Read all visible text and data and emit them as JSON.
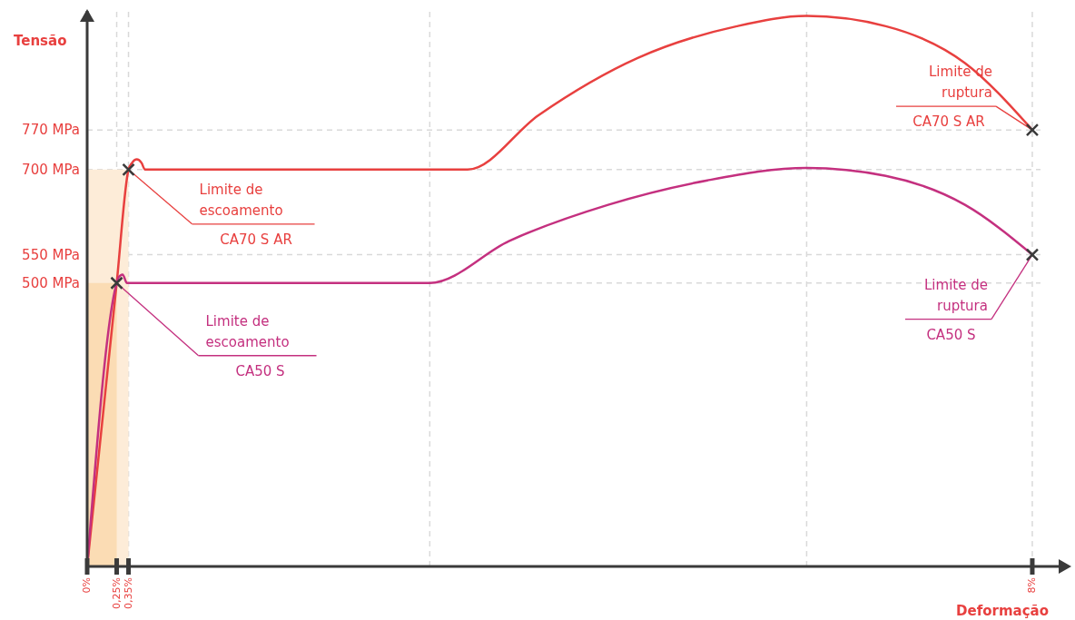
{
  "chart_data": {
    "type": "line",
    "xlabel": "Deformação",
    "ylabel": "Tensão",
    "xlim": [
      0,
      8.3
    ],
    "ylim": [
      0,
      980
    ],
    "xticks": [
      {
        "value": 0,
        "label": "0%"
      },
      {
        "value": 0.25,
        "label": "0,25%"
      },
      {
        "value": 0.35,
        "label": "0,35%"
      },
      {
        "value": 8,
        "label": "8%"
      }
    ],
    "yticks": [
      {
        "value": 500,
        "label": "500 MPa"
      },
      {
        "value": 550,
        "label": "550 MPa"
      },
      {
        "value": 700,
        "label": "700 MPa"
      },
      {
        "value": 770,
        "label": "770 MPa"
      }
    ],
    "grid": true,
    "ref_lines": [
      {
        "axis": "x",
        "value": 2.9,
        "color": "#d9d9d9",
        "line_style": "dashed"
      },
      {
        "axis": "x",
        "value": 6.09,
        "color": "#d9d9d9",
        "line_style": "dashed"
      }
    ],
    "series": [
      {
        "type": "area",
        "color": "#fdecd8",
        "x": [
          0,
          0.35
        ],
        "values": [
          700,
          700
        ]
      },
      {
        "type": "area",
        "color": "#fbdcb4",
        "x": [
          0,
          0.25
        ],
        "values": [
          500,
          500
        ]
      },
      {
        "type": "line",
        "color": "#e8403f",
        "x": [
          0,
          0.25,
          0.35,
          0.38,
          0.42,
          0.46,
          0.49,
          3.22,
          3.82,
          4.66,
          5.5,
          6.09,
          6.76,
          7.43,
          8
        ],
        "values": [
          0,
          500,
          700,
          712,
          718,
          712,
          700,
          700,
          796,
          897,
          953,
          971,
          953,
          888,
          770
        ]
      },
      {
        "type": "line",
        "color": "#c4307f",
        "x": [
          0,
          0.25,
          0.266,
          0.3,
          0.337,
          2.9,
          3.57,
          4.41,
          5.25,
          6.09,
          6.76,
          7.43,
          8
        ],
        "values": [
          0,
          500,
          510,
          515,
          500,
          500,
          574,
          638,
          681,
          703,
          689,
          638,
          550
        ]
      }
    ],
    "annotations": [
      {
        "text": "Limite de\nescoamento\nCA70 S AR",
        "x": 0.35,
        "y": 700
      },
      {
        "text": "Limite de\nescoamento\nCA50 S",
        "x": 0.25,
        "y": 500
      },
      {
        "text": "Limite de\nruptura\nCA70 S AR",
        "x": 8,
        "y": 770
      },
      {
        "text": "Limite de\nruptura\nCA50 S",
        "x": 8,
        "y": 550
      }
    ]
  }
}
